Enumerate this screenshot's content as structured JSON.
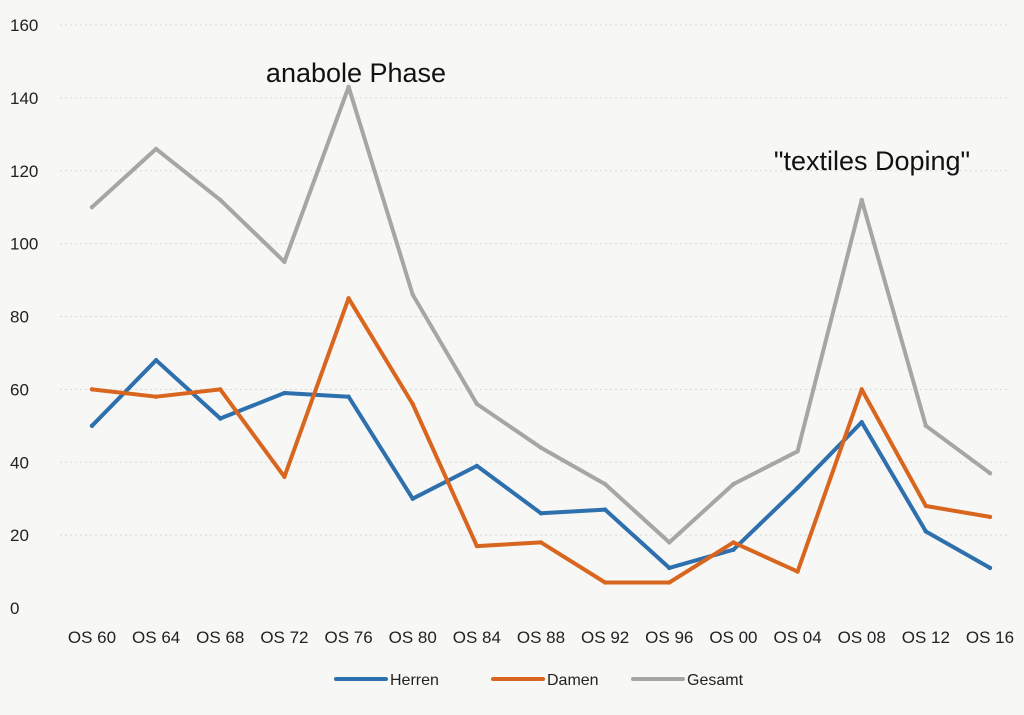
{
  "chart_data": {
    "type": "line",
    "categories": [
      "OS 60",
      "OS 64",
      "OS 68",
      "OS 72",
      "OS 76",
      "OS 80",
      "OS 84",
      "OS 88",
      "OS 92",
      "OS 96",
      "OS 00",
      "OS 04",
      "OS 08",
      "OS 12",
      "OS 16"
    ],
    "series": [
      {
        "name": "Herren",
        "color": "#2e6fad",
        "values": [
          50,
          68,
          52,
          59,
          58,
          30,
          39,
          26,
          27,
          11,
          16,
          33,
          51,
          21,
          11
        ]
      },
      {
        "name": "Damen",
        "color": "#d9661f",
        "values": [
          60,
          58,
          60,
          36,
          85,
          56,
          17,
          18,
          7,
          7,
          18,
          10,
          60,
          28,
          25
        ]
      },
      {
        "name": "Gesamt",
        "color": "#a8a6a4",
        "values": [
          110,
          126,
          112,
          95,
          143,
          86,
          56,
          44,
          34,
          18,
          34,
          43,
          112,
          50,
          37
        ]
      }
    ],
    "yticks": [
      0,
      20,
      40,
      60,
      80,
      100,
      120,
      140,
      160
    ],
    "ylim": [
      0,
      160
    ],
    "grid": true,
    "legend_position": "bottom",
    "annotations": [
      {
        "text": "anabole Phase",
        "category": "OS 76",
        "value": 143
      },
      {
        "text": "\"textiles Doping\"",
        "category": "OS 08",
        "value": 112
      }
    ]
  }
}
